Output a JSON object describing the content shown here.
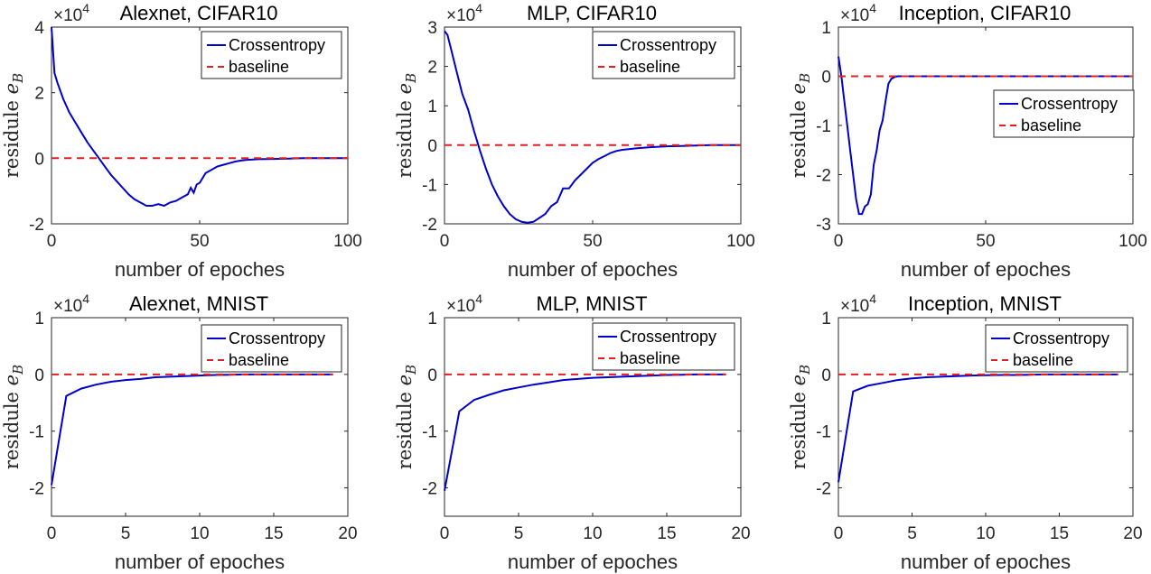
{
  "chart_data": [
    {
      "type": "line",
      "title": "Alexnet, CIFAR10",
      "xlabel": "number of epoches",
      "ylabel": "residule e_B",
      "ylabel_main": "residule ",
      "ylabel_var": "e",
      "ylabel_sub": "B",
      "exponent_label": "×10",
      "exponent_power": "4",
      "xlim": [
        0,
        100
      ],
      "ylim": [
        -2,
        4
      ],
      "xticks": [
        0,
        50,
        100
      ],
      "yticks": [
        -2,
        0,
        2,
        4
      ],
      "xtick_labels": [
        "0",
        "50",
        "100"
      ],
      "ytick_labels": [
        "-2",
        "0",
        "2",
        "4"
      ],
      "legend_position": "top-right",
      "legend": [
        "Crossentropy",
        "baseline"
      ],
      "series": [
        {
          "name": "Crossentropy",
          "x": [
            0,
            1,
            2,
            4,
            6,
            8,
            10,
            12,
            14,
            16,
            18,
            20,
            22,
            24,
            26,
            28,
            30,
            32,
            34,
            36,
            38,
            40,
            42,
            44,
            46,
            47,
            48,
            49,
            50,
            52,
            54,
            56,
            58,
            60,
            62,
            64,
            66,
            68,
            70,
            75,
            80,
            85,
            90,
            95,
            100
          ],
          "y": [
            4,
            2.6,
            2.3,
            1.8,
            1.4,
            1.1,
            0.8,
            0.5,
            0.25,
            0,
            -0.25,
            -0.5,
            -0.7,
            -0.9,
            -1.1,
            -1.25,
            -1.35,
            -1.45,
            -1.45,
            -1.4,
            -1.45,
            -1.35,
            -1.3,
            -1.2,
            -1.1,
            -0.9,
            -1.05,
            -0.8,
            -0.75,
            -0.45,
            -0.35,
            -0.25,
            -0.2,
            -0.15,
            -0.1,
            -0.07,
            -0.05,
            -0.04,
            -0.03,
            -0.02,
            -0.01,
            0,
            0,
            0,
            0
          ]
        },
        {
          "name": "baseline",
          "x": [
            0,
            100
          ],
          "y": [
            0,
            0
          ]
        }
      ]
    },
    {
      "type": "line",
      "title": "MLP, CIFAR10",
      "xlabel": "number of epoches",
      "ylabel": "residule e_B",
      "ylabel_main": "residule ",
      "ylabel_var": "e",
      "ylabel_sub": "B",
      "exponent_label": "×10",
      "exponent_power": "4",
      "xlim": [
        0,
        100
      ],
      "ylim": [
        -2,
        3
      ],
      "xticks": [
        0,
        50,
        100
      ],
      "yticks": [
        -2,
        -1,
        0,
        1,
        2,
        3
      ],
      "xtick_labels": [
        "0",
        "50",
        "100"
      ],
      "ytick_labels": [
        "-2",
        "-1",
        "0",
        "1",
        "2",
        "3"
      ],
      "legend_position": "top-right",
      "legend": [
        "Crossentropy",
        "baseline"
      ],
      "series": [
        {
          "name": "Crossentropy",
          "x": [
            0,
            1,
            2,
            4,
            6,
            8,
            10,
            12,
            14,
            16,
            18,
            20,
            22,
            24,
            26,
            28,
            30,
            32,
            34,
            36,
            38,
            40,
            42,
            44,
            46,
            48,
            50,
            52,
            54,
            56,
            58,
            60,
            65,
            70,
            75,
            80,
            85,
            90,
            95,
            100
          ],
          "y": [
            2.9,
            2.8,
            2.5,
            1.9,
            1.3,
            0.9,
            0.35,
            -0.15,
            -0.6,
            -1,
            -1.3,
            -1.55,
            -1.75,
            -1.88,
            -1.95,
            -1.97,
            -1.95,
            -1.85,
            -1.75,
            -1.55,
            -1.45,
            -1.1,
            -1.1,
            -0.9,
            -0.75,
            -0.6,
            -0.45,
            -0.35,
            -0.28,
            -0.2,
            -0.15,
            -0.12,
            -0.08,
            -0.05,
            -0.03,
            -0.02,
            -0.01,
            0,
            0,
            0
          ]
        },
        {
          "name": "baseline",
          "x": [
            0,
            100
          ],
          "y": [
            0,
            0
          ]
        }
      ]
    },
    {
      "type": "line",
      "title": "Inception, CIFAR10",
      "xlabel": "number of epoches",
      "ylabel": "residule e_B",
      "ylabel_main": "residule ",
      "ylabel_var": "e",
      "ylabel_sub": "B",
      "exponent_label": "×10",
      "exponent_power": "4",
      "xlim": [
        0,
        100
      ],
      "ylim": [
        -3,
        1
      ],
      "xticks": [
        0,
        50,
        100
      ],
      "yticks": [
        -3,
        -2,
        -1,
        0,
        1
      ],
      "xtick_labels": [
        "0",
        "50",
        "100"
      ],
      "ytick_labels": [
        "-3",
        "-2",
        "-1",
        "0",
        "1"
      ],
      "legend_position": "center-right",
      "legend": [
        "Crossentropy",
        "baseline"
      ],
      "series": [
        {
          "name": "Crossentropy",
          "x": [
            0,
            1,
            2,
            3,
            4,
            5,
            6,
            7,
            8,
            9,
            10,
            11,
            12,
            13,
            14,
            15,
            16,
            17,
            18,
            19,
            20,
            22,
            25,
            30,
            40,
            50,
            60,
            70,
            80,
            90,
            100
          ],
          "y": [
            0.4,
            0,
            -0.5,
            -1,
            -1.5,
            -2,
            -2.5,
            -2.8,
            -2.8,
            -2.65,
            -2.6,
            -2.4,
            -1.8,
            -1.5,
            -1.1,
            -0.9,
            -0.5,
            -0.15,
            -0.05,
            -0.02,
            0,
            0,
            0,
            0,
            0,
            0,
            0,
            0,
            0,
            0,
            0
          ]
        },
        {
          "name": "baseline",
          "x": [
            0,
            100
          ],
          "y": [
            0,
            0
          ]
        }
      ]
    },
    {
      "type": "line",
      "title": "Alexnet, MNIST",
      "xlabel": "number of epoches",
      "ylabel": "residule e_B",
      "ylabel_main": "residule ",
      "ylabel_var": "e",
      "ylabel_sub": "B",
      "exponent_label": "×10",
      "exponent_power": "4",
      "xlim": [
        0,
        20
      ],
      "ylim": [
        -2.5,
        1
      ],
      "xticks": [
        0,
        5,
        10,
        15,
        20
      ],
      "yticks": [
        -2,
        -1,
        0,
        1
      ],
      "xtick_labels": [
        "0",
        "5",
        "10",
        "15",
        "20"
      ],
      "ytick_labels": [
        "-2",
        "-1",
        "0",
        "1"
      ],
      "legend_position": "top-right",
      "legend": [
        "Crossentropy",
        "baseline"
      ],
      "series": [
        {
          "name": "Crossentropy",
          "x": [
            0,
            1,
            2,
            3,
            4,
            5,
            6,
            7,
            8,
            9,
            10,
            11,
            12,
            13,
            14,
            15,
            16,
            17,
            18,
            19
          ],
          "y": [
            -1.95,
            -0.38,
            -0.25,
            -0.18,
            -0.13,
            -0.1,
            -0.08,
            -0.05,
            -0.04,
            -0.03,
            -0.02,
            -0.01,
            -0.005,
            0,
            0,
            0,
            0,
            0,
            0,
            0
          ]
        },
        {
          "name": "baseline",
          "x": [
            0,
            19
          ],
          "y": [
            0,
            0
          ]
        }
      ]
    },
    {
      "type": "line",
      "title": "MLP, MNIST",
      "xlabel": "number of epoches",
      "ylabel": "residule e_B",
      "ylabel_main": "residule ",
      "ylabel_var": "e",
      "ylabel_sub": "B",
      "exponent_label": "×10",
      "exponent_power": "4",
      "xlim": [
        0,
        20
      ],
      "ylim": [
        -2.5,
        1
      ],
      "xticks": [
        0,
        5,
        10,
        15,
        20
      ],
      "yticks": [
        -2,
        -1,
        0,
        1
      ],
      "xtick_labels": [
        "0",
        "5",
        "10",
        "15",
        "20"
      ],
      "ytick_labels": [
        "-2",
        "-1",
        "0",
        "1"
      ],
      "legend_position": "top-right",
      "legend": [
        "Crossentropy",
        "baseline"
      ],
      "series": [
        {
          "name": "Crossentropy",
          "x": [
            0,
            1,
            2,
            3,
            4,
            5,
            6,
            7,
            8,
            9,
            10,
            11,
            12,
            13,
            14,
            15,
            16,
            17,
            18,
            19
          ],
          "y": [
            -2.05,
            -0.65,
            -0.45,
            -0.36,
            -0.28,
            -0.23,
            -0.18,
            -0.14,
            -0.1,
            -0.08,
            -0.06,
            -0.05,
            -0.04,
            -0.03,
            -0.02,
            -0.01,
            -0.005,
            0,
            0,
            0
          ]
        },
        {
          "name": "baseline",
          "x": [
            0,
            19
          ],
          "y": [
            0,
            0
          ]
        }
      ]
    },
    {
      "type": "line",
      "title": "Inception, MNIST",
      "xlabel": "number of epoches",
      "ylabel": "residule e_B",
      "ylabel_main": "residule ",
      "ylabel_var": "e",
      "ylabel_sub": "B",
      "exponent_label": "×10",
      "exponent_power": "4",
      "xlim": [
        0,
        20
      ],
      "ylim": [
        -2.5,
        1
      ],
      "xticks": [
        0,
        5,
        10,
        15,
        20
      ],
      "yticks": [
        -2,
        -1,
        0,
        1
      ],
      "xtick_labels": [
        "0",
        "5",
        "10",
        "15",
        "20"
      ],
      "ytick_labels": [
        "-2",
        "-1",
        "0",
        "1"
      ],
      "legend_position": "top-right",
      "legend": [
        "Crossentropy",
        "baseline"
      ],
      "series": [
        {
          "name": "Crossentropy",
          "x": [
            0,
            1,
            2,
            3,
            4,
            5,
            6,
            7,
            8,
            9,
            10,
            11,
            12,
            13,
            14,
            15,
            16,
            17,
            18,
            19
          ],
          "y": [
            -1.9,
            -0.3,
            -0.2,
            -0.15,
            -0.1,
            -0.07,
            -0.05,
            -0.04,
            -0.03,
            -0.02,
            -0.015,
            -0.01,
            -0.01,
            -0.005,
            0,
            0,
            0,
            0,
            0,
            0
          ]
        },
        {
          "name": "baseline",
          "x": [
            0,
            19
          ],
          "y": [
            0,
            0
          ]
        }
      ]
    }
  ],
  "colors": {
    "crossentropy": "#0000cc",
    "baseline": "#e02020",
    "axis": "#262626"
  }
}
